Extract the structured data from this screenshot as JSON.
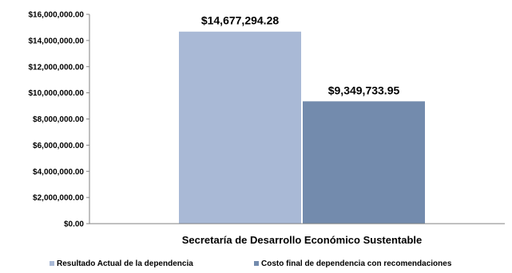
{
  "chart_data": {
    "type": "bar",
    "categories": [
      "Secretaría de Desarrollo Económico Sustentable"
    ],
    "series": [
      {
        "name": "Resultado Actual de la dependencia",
        "values": [
          14677294.28
        ],
        "value_label": "$14,677,294.28",
        "color": "#A9B9D6"
      },
      {
        "name": "Costo final de dependencia con recomendaciones",
        "values": [
          9349733.95
        ],
        "value_label": "$9,349,733.95",
        "color": "#738BAD"
      }
    ],
    "yticks": [
      0,
      2000000,
      4000000,
      6000000,
      8000000,
      10000000,
      12000000,
      14000000,
      16000000
    ],
    "ytick_labels": [
      "$0.00",
      "$2,000,000.00",
      "$4,000,000.00",
      "$6,000,000.00",
      "$8,000,000.00",
      "$10,000,000.00",
      "$12,000,000.00",
      "$14,000,000.00",
      "$16,000,000.00"
    ],
    "ylim": [
      0,
      16000000
    ],
    "grid": false,
    "legend_position": "bottom"
  }
}
